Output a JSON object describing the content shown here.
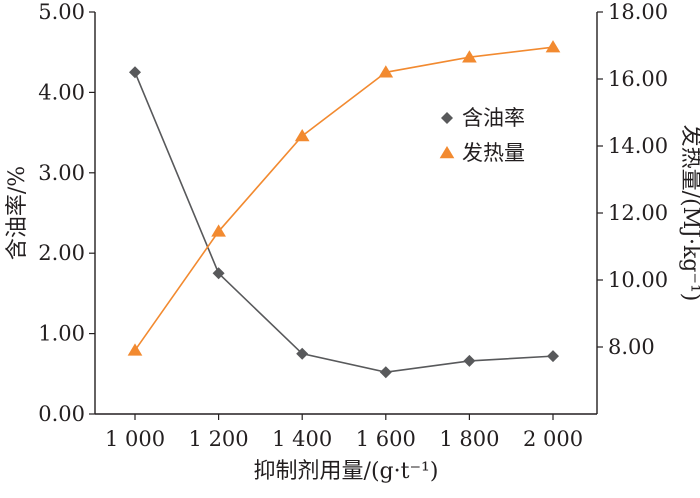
{
  "chart_data": {
    "type": "line",
    "x": [
      1000,
      1200,
      1400,
      1600,
      1800,
      2000
    ],
    "x_tick_labels": [
      "1 000",
      "1 200",
      "1 400",
      "1 600",
      "1 800",
      "2 000"
    ],
    "xlabel": "抑制剂用量/(g·t⁻¹)",
    "ylabel_left": "含油率/%",
    "ylabel_right": "发热量/(MJ·kg⁻¹)",
    "ylim_left": [
      0,
      5
    ],
    "ylim_right": [
      6,
      18
    ],
    "yticks_left": [
      "0.00",
      "1.00",
      "2.00",
      "3.00",
      "4.00",
      "5.00"
    ],
    "yticks_right": [
      "8.00",
      "10.00",
      "12.00",
      "14.00",
      "16.00",
      "18.00"
    ],
    "grid": false,
    "legend_position": "top-right",
    "series": [
      {
        "name": "含油率",
        "axis": "left",
        "marker": "diamond",
        "color": "#58595b",
        "values": [
          4.25,
          1.75,
          0.75,
          0.52,
          0.66,
          0.72
        ]
      },
      {
        "name": "发热量",
        "axis": "right",
        "marker": "triangle",
        "color": "#f28a30",
        "values": [
          7.9,
          11.45,
          14.3,
          16.2,
          16.65,
          16.95
        ]
      }
    ]
  }
}
